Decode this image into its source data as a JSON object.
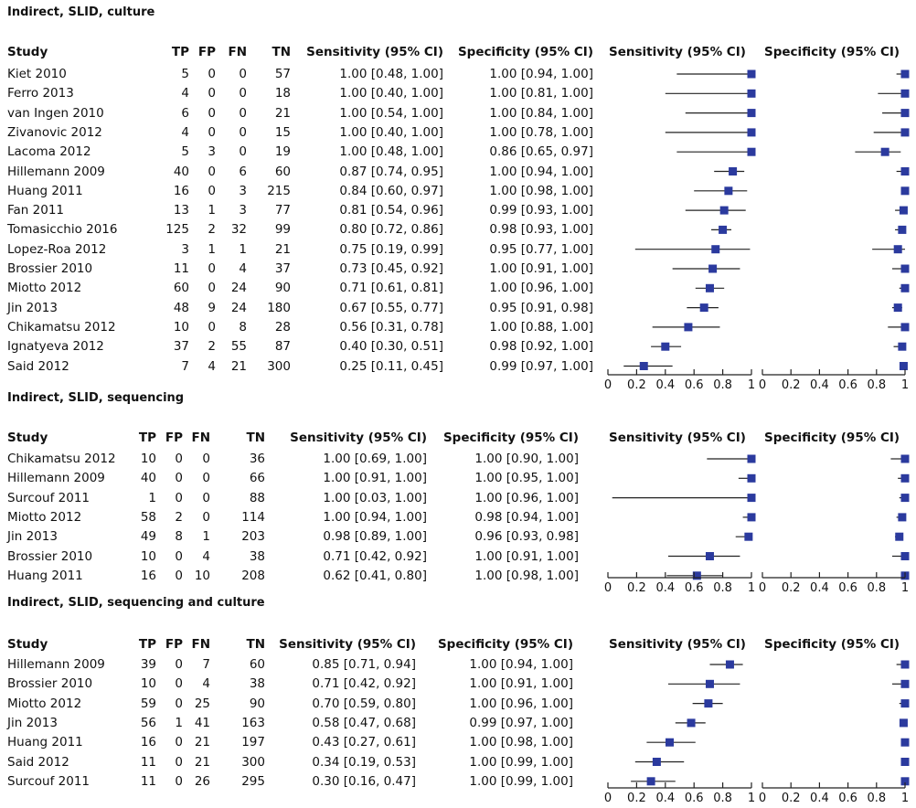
{
  "colors": {
    "marker": "#2b3a9e",
    "line": "#222222"
  },
  "column_headers": {
    "study": "Study",
    "tp": "TP",
    "fp": "FP",
    "fn": "FN",
    "tn": "TN",
    "sensitivity": "Sensitivity (95% CI)",
    "specificity": "Specificity (95% CI)",
    "sens_plot": "Sensitivity (95% CI)",
    "spec_plot": "Specificity (95% CI)"
  },
  "axis_ticks": [
    "0",
    "0.2",
    "0.4",
    "0.6",
    "0.8",
    "1"
  ],
  "chart_data": [
    {
      "type": "forest",
      "title": "Indirect, SLID, culture",
      "xlim": [
        0,
        1
      ],
      "rows": [
        {
          "study": "Kiet 2010",
          "tp": "5",
          "fp": "0",
          "fn": "0",
          "tn": "57",
          "sens_text": "1.00 [0.48, 1.00]",
          "spec_text": "1.00 [0.94, 1.00]",
          "sens": 1.0,
          "sens_lo": 0.48,
          "sens_hi": 1.0,
          "spec": 1.0,
          "spec_lo": 0.94,
          "spec_hi": 1.0
        },
        {
          "study": "Ferro 2013",
          "tp": "4",
          "fp": "0",
          "fn": "0",
          "tn": "18",
          "sens_text": "1.00 [0.40, 1.00]",
          "spec_text": "1.00 [0.81, 1.00]",
          "sens": 1.0,
          "sens_lo": 0.4,
          "sens_hi": 1.0,
          "spec": 1.0,
          "spec_lo": 0.81,
          "spec_hi": 1.0
        },
        {
          "study": "van Ingen 2010",
          "tp": "6",
          "fp": "0",
          "fn": "0",
          "tn": "21",
          "sens_text": "1.00 [0.54, 1.00]",
          "spec_text": "1.00 [0.84, 1.00]",
          "sens": 1.0,
          "sens_lo": 0.54,
          "sens_hi": 1.0,
          "spec": 1.0,
          "spec_lo": 0.84,
          "spec_hi": 1.0
        },
        {
          "study": "Zivanovic 2012",
          "tp": "4",
          "fp": "0",
          "fn": "0",
          "tn": "15",
          "sens_text": "1.00 [0.40, 1.00]",
          "spec_text": "1.00 [0.78, 1.00]",
          "sens": 1.0,
          "sens_lo": 0.4,
          "sens_hi": 1.0,
          "spec": 1.0,
          "spec_lo": 0.78,
          "spec_hi": 1.0
        },
        {
          "study": "Lacoma 2012",
          "tp": "5",
          "fp": "3",
          "fn": "0",
          "tn": "19",
          "sens_text": "1.00 [0.48, 1.00]",
          "spec_text": "0.86 [0.65, 0.97]",
          "sens": 1.0,
          "sens_lo": 0.48,
          "sens_hi": 1.0,
          "spec": 0.86,
          "spec_lo": 0.65,
          "spec_hi": 0.97
        },
        {
          "study": "Hillemann 2009",
          "tp": "40",
          "fp": "0",
          "fn": "6",
          "tn": "60",
          "sens_text": "0.87 [0.74, 0.95]",
          "spec_text": "1.00 [0.94, 1.00]",
          "sens": 0.87,
          "sens_lo": 0.74,
          "sens_hi": 0.95,
          "spec": 1.0,
          "spec_lo": 0.94,
          "spec_hi": 1.0
        },
        {
          "study": "Huang 2011",
          "tp": "16",
          "fp": "0",
          "fn": "3",
          "tn": "215",
          "sens_text": "0.84 [0.60, 0.97]",
          "spec_text": "1.00 [0.98, 1.00]",
          "sens": 0.84,
          "sens_lo": 0.6,
          "sens_hi": 0.97,
          "spec": 1.0,
          "spec_lo": 0.98,
          "spec_hi": 1.0
        },
        {
          "study": "Fan 2011",
          "tp": "13",
          "fp": "1",
          "fn": "3",
          "tn": "77",
          "sens_text": "0.81 [0.54, 0.96]",
          "spec_text": "0.99 [0.93, 1.00]",
          "sens": 0.81,
          "sens_lo": 0.54,
          "sens_hi": 0.96,
          "spec": 0.99,
          "spec_lo": 0.93,
          "spec_hi": 1.0
        },
        {
          "study": "Tomasicchio 2016",
          "tp": "125",
          "fp": "2",
          "fn": "32",
          "tn": "99",
          "sens_text": "0.80 [0.72, 0.86]",
          "spec_text": "0.98 [0.93, 1.00]",
          "sens": 0.8,
          "sens_lo": 0.72,
          "sens_hi": 0.86,
          "spec": 0.98,
          "spec_lo": 0.93,
          "spec_hi": 1.0
        },
        {
          "study": "Lopez-Roa 2012",
          "tp": "3",
          "fp": "1",
          "fn": "1",
          "tn": "21",
          "sens_text": "0.75 [0.19, 0.99]",
          "spec_text": "0.95 [0.77, 1.00]",
          "sens": 0.75,
          "sens_lo": 0.19,
          "sens_hi": 0.99,
          "spec": 0.95,
          "spec_lo": 0.77,
          "spec_hi": 1.0
        },
        {
          "study": "Brossier 2010",
          "tp": "11",
          "fp": "0",
          "fn": "4",
          "tn": "37",
          "sens_text": "0.73 [0.45, 0.92]",
          "spec_text": "1.00 [0.91, 1.00]",
          "sens": 0.73,
          "sens_lo": 0.45,
          "sens_hi": 0.92,
          "spec": 1.0,
          "spec_lo": 0.91,
          "spec_hi": 1.0
        },
        {
          "study": "Miotto 2012",
          "tp": "60",
          "fp": "0",
          "fn": "24",
          "tn": "90",
          "sens_text": "0.71 [0.61, 0.81]",
          "spec_text": "1.00 [0.96, 1.00]",
          "sens": 0.71,
          "sens_lo": 0.61,
          "sens_hi": 0.81,
          "spec": 1.0,
          "spec_lo": 0.96,
          "spec_hi": 1.0
        },
        {
          "study": "Jin 2013",
          "tp": "48",
          "fp": "9",
          "fn": "24",
          "tn": "180",
          "sens_text": "0.67 [0.55, 0.77]",
          "spec_text": "0.95 [0.91, 0.98]",
          "sens": 0.67,
          "sens_lo": 0.55,
          "sens_hi": 0.77,
          "spec": 0.95,
          "spec_lo": 0.91,
          "spec_hi": 0.98
        },
        {
          "study": "Chikamatsu 2012",
          "tp": "10",
          "fp": "0",
          "fn": "8",
          "tn": "28",
          "sens_text": "0.56 [0.31, 0.78]",
          "spec_text": "1.00 [0.88, 1.00]",
          "sens": 0.56,
          "sens_lo": 0.31,
          "sens_hi": 0.78,
          "spec": 1.0,
          "spec_lo": 0.88,
          "spec_hi": 1.0
        },
        {
          "study": "Ignatyeva 2012",
          "tp": "37",
          "fp": "2",
          "fn": "55",
          "tn": "87",
          "sens_text": "0.40 [0.30, 0.51]",
          "spec_text": "0.98 [0.92, 1.00]",
          "sens": 0.4,
          "sens_lo": 0.3,
          "sens_hi": 0.51,
          "spec": 0.98,
          "spec_lo": 0.92,
          "spec_hi": 1.0
        },
        {
          "study": "Said 2012",
          "tp": "7",
          "fp": "4",
          "fn": "21",
          "tn": "300",
          "sens_text": "0.25 [0.11, 0.45]",
          "spec_text": "0.99 [0.97, 1.00]",
          "sens": 0.25,
          "sens_lo": 0.11,
          "sens_hi": 0.45,
          "spec": 0.99,
          "spec_lo": 0.97,
          "spec_hi": 1.0
        }
      ]
    },
    {
      "type": "forest",
      "title": "Indirect, SLID, sequencing",
      "xlim": [
        0,
        1
      ],
      "rows": [
        {
          "study": "Chikamatsu 2012",
          "tp": "10",
          "fp": "0",
          "fn": "0",
          "tn": "36",
          "sens_text": "1.00 [0.69, 1.00]",
          "spec_text": "1.00 [0.90, 1.00]",
          "sens": 1.0,
          "sens_lo": 0.69,
          "sens_hi": 1.0,
          "spec": 1.0,
          "spec_lo": 0.9,
          "spec_hi": 1.0
        },
        {
          "study": "Hillemann 2009",
          "tp": "40",
          "fp": "0",
          "fn": "0",
          "tn": "66",
          "sens_text": "1.00 [0.91, 1.00]",
          "spec_text": "1.00 [0.95, 1.00]",
          "sens": 1.0,
          "sens_lo": 0.91,
          "sens_hi": 1.0,
          "spec": 1.0,
          "spec_lo": 0.95,
          "spec_hi": 1.0
        },
        {
          "study": "Surcouf 2011",
          "tp": "1",
          "fp": "0",
          "fn": "0",
          "tn": "88",
          "sens_text": "1.00 [0.03, 1.00]",
          "spec_text": "1.00 [0.96, 1.00]",
          "sens": 1.0,
          "sens_lo": 0.03,
          "sens_hi": 1.0,
          "spec": 1.0,
          "spec_lo": 0.96,
          "spec_hi": 1.0
        },
        {
          "study": "Miotto 2012",
          "tp": "58",
          "fp": "2",
          "fn": "0",
          "tn": "114",
          "sens_text": "1.00 [0.94, 1.00]",
          "spec_text": "0.98 [0.94, 1.00]",
          "sens": 1.0,
          "sens_lo": 0.94,
          "sens_hi": 1.0,
          "spec": 0.98,
          "spec_lo": 0.94,
          "spec_hi": 1.0
        },
        {
          "study": "Jin 2013",
          "tp": "49",
          "fp": "8",
          "fn": "1",
          "tn": "203",
          "sens_text": "0.98 [0.89, 1.00]",
          "spec_text": "0.96 [0.93, 0.98]",
          "sens": 0.98,
          "sens_lo": 0.89,
          "sens_hi": 1.0,
          "spec": 0.96,
          "spec_lo": 0.93,
          "spec_hi": 0.98
        },
        {
          "study": "Brossier 2010",
          "tp": "10",
          "fp": "0",
          "fn": "4",
          "tn": "38",
          "sens_text": "0.71 [0.42, 0.92]",
          "spec_text": "1.00 [0.91, 1.00]",
          "sens": 0.71,
          "sens_lo": 0.42,
          "sens_hi": 0.92,
          "spec": 1.0,
          "spec_lo": 0.91,
          "spec_hi": 1.0
        },
        {
          "study": "Huang 2011",
          "tp": "16",
          "fp": "0",
          "fn": "10",
          "tn": "208",
          "sens_text": "0.62 [0.41, 0.80]",
          "spec_text": "1.00 [0.98, 1.00]",
          "sens": 0.62,
          "sens_lo": 0.41,
          "sens_hi": 0.8,
          "spec": 1.0,
          "spec_lo": 0.98,
          "spec_hi": 1.0
        }
      ]
    },
    {
      "type": "forest",
      "title": "Indirect, SLID, sequencing and culture",
      "xlim": [
        0,
        1
      ],
      "rows": [
        {
          "study": "Hillemann 2009",
          "tp": "39",
          "fp": "0",
          "fn": "7",
          "tn": "60",
          "sens_text": "0.85 [0.71, 0.94]",
          "spec_text": "1.00 [0.94, 1.00]",
          "sens": 0.85,
          "sens_lo": 0.71,
          "sens_hi": 0.94,
          "spec": 1.0,
          "spec_lo": 0.94,
          "spec_hi": 1.0
        },
        {
          "study": "Brossier 2010",
          "tp": "10",
          "fp": "0",
          "fn": "4",
          "tn": "38",
          "sens_text": "0.71 [0.42, 0.92]",
          "spec_text": "1.00 [0.91, 1.00]",
          "sens": 0.71,
          "sens_lo": 0.42,
          "sens_hi": 0.92,
          "spec": 1.0,
          "spec_lo": 0.91,
          "spec_hi": 1.0
        },
        {
          "study": "Miotto 2012",
          "tp": "59",
          "fp": "0",
          "fn": "25",
          "tn": "90",
          "sens_text": "0.70 [0.59, 0.80]",
          "spec_text": "1.00 [0.96, 1.00]",
          "sens": 0.7,
          "sens_lo": 0.59,
          "sens_hi": 0.8,
          "spec": 1.0,
          "spec_lo": 0.96,
          "spec_hi": 1.0
        },
        {
          "study": "Jin 2013",
          "tp": "56",
          "fp": "1",
          "fn": "41",
          "tn": "163",
          "sens_text": "0.58 [0.47, 0.68]",
          "spec_text": "0.99 [0.97, 1.00]",
          "sens": 0.58,
          "sens_lo": 0.47,
          "sens_hi": 0.68,
          "spec": 0.99,
          "spec_lo": 0.97,
          "spec_hi": 1.0
        },
        {
          "study": "Huang 2011",
          "tp": "16",
          "fp": "0",
          "fn": "21",
          "tn": "197",
          "sens_text": "0.43 [0.27, 0.61]",
          "spec_text": "1.00 [0.98, 1.00]",
          "sens": 0.43,
          "sens_lo": 0.27,
          "sens_hi": 0.61,
          "spec": 1.0,
          "spec_lo": 0.98,
          "spec_hi": 1.0
        },
        {
          "study": "Said 2012",
          "tp": "11",
          "fp": "0",
          "fn": "21",
          "tn": "300",
          "sens_text": "0.34 [0.19, 0.53]",
          "spec_text": "1.00 [0.99, 1.00]",
          "sens": 0.34,
          "sens_lo": 0.19,
          "sens_hi": 0.53,
          "spec": 1.0,
          "spec_lo": 0.99,
          "spec_hi": 1.0
        },
        {
          "study": "Surcouf 2011",
          "tp": "11",
          "fp": "0",
          "fn": "26",
          "tn": "295",
          "sens_text": "0.30 [0.16, 0.47]",
          "spec_text": "1.00 [0.99, 1.00]",
          "sens": 0.3,
          "sens_lo": 0.16,
          "sens_hi": 0.47,
          "spec": 1.0,
          "spec_lo": 0.99,
          "spec_hi": 1.0
        }
      ]
    }
  ]
}
